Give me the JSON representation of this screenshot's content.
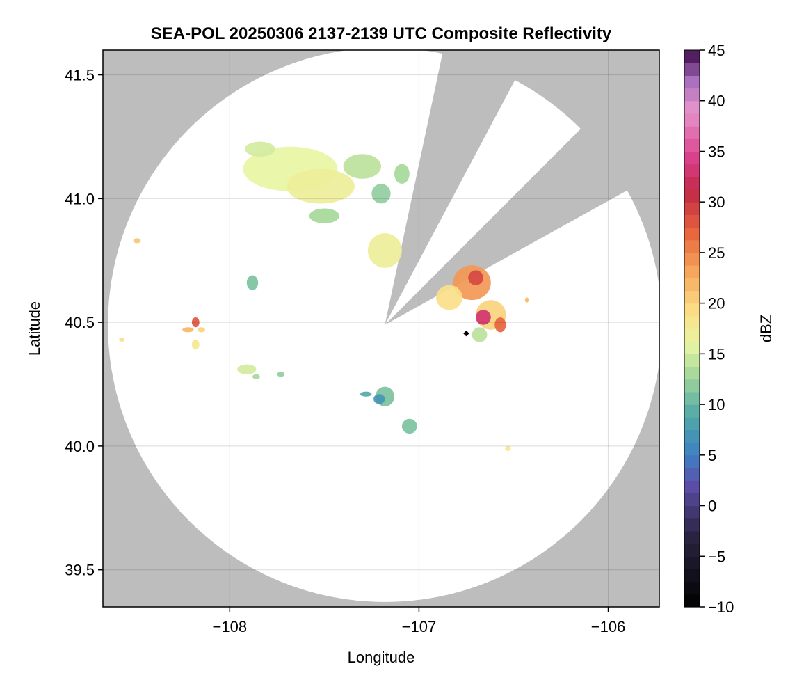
{
  "chart_data": {
    "type": "heatmap",
    "title": "SEA-POL 20250306 2137-2139 UTC Composite Reflectivity",
    "xlabel": "Longitude",
    "ylabel": "Latitude",
    "xlim": [
      -108.67,
      -105.73
    ],
    "ylim": [
      39.35,
      41.6
    ],
    "xticks": [
      -108,
      -107,
      -106
    ],
    "xtick_labels": [
      "−108",
      "−107",
      "−106"
    ],
    "yticks": [
      39.5,
      40.0,
      40.5,
      41.0,
      41.5
    ],
    "ytick_labels": [
      "39.5",
      "40.0",
      "40.5",
      "41.0",
      "41.5"
    ],
    "grid": true,
    "background_color": "#bdbdbd",
    "radar": {
      "center_lon": -107.18,
      "center_lat": 40.49,
      "range_lat_deg": 1.12,
      "blocked_sectors_deg_from_north": [
        [
          12,
          28
        ],
        [
          45,
          61
        ]
      ]
    },
    "radar_marker": {
      "lon": -106.75,
      "lat": 40.455
    },
    "colorbar": {
      "label": "dBZ",
      "min": -10,
      "max": 45,
      "step": 1.25,
      "ticks": [
        45,
        40,
        35,
        30,
        25,
        20,
        15,
        10,
        5,
        0,
        -5,
        -10
      ],
      "tick_labels": [
        "45",
        "40",
        "35",
        "30",
        "25",
        "20",
        "15",
        "10",
        "5",
        "0",
        "−5",
        "−10"
      ],
      "colormap": "Spectral_r",
      "stops": [
        {
          "v": -10,
          "c": "#000000"
        },
        {
          "v": -3,
          "c": "#2a2440"
        },
        {
          "v": 2,
          "c": "#5c4ea8"
        },
        {
          "v": 5,
          "c": "#3e7fc4"
        },
        {
          "v": 9,
          "c": "#52aaa6"
        },
        {
          "v": 13,
          "c": "#a6d99b"
        },
        {
          "v": 16,
          "c": "#e8f5a2"
        },
        {
          "v": 19,
          "c": "#fbe089"
        },
        {
          "v": 23,
          "c": "#f6a95c"
        },
        {
          "v": 27,
          "c": "#e8653e"
        },
        {
          "v": 31,
          "c": "#c22a46"
        },
        {
          "v": 34,
          "c": "#d83b85"
        },
        {
          "v": 39,
          "c": "#e895cc"
        },
        {
          "v": 42,
          "c": "#a86fbd"
        },
        {
          "v": 45,
          "c": "#3e0a4a"
        }
      ]
    },
    "echoes": [
      {
        "lon": -107.68,
        "lat": 41.12,
        "rlon": 0.25,
        "rlat": 0.09,
        "dbz": 16
      },
      {
        "lon": -107.52,
        "lat": 41.05,
        "rlon": 0.18,
        "rlat": 0.07,
        "dbz": 17
      },
      {
        "lon": -107.84,
        "lat": 41.2,
        "rlon": 0.08,
        "rlat": 0.03,
        "dbz": 15
      },
      {
        "lon": -107.3,
        "lat": 41.13,
        "rlon": 0.1,
        "rlat": 0.05,
        "dbz": 14
      },
      {
        "lon": -107.5,
        "lat": 40.93,
        "rlon": 0.08,
        "rlat": 0.03,
        "dbz": 13
      },
      {
        "lon": -107.2,
        "lat": 41.02,
        "rlon": 0.05,
        "rlat": 0.04,
        "dbz": 12
      },
      {
        "lon": -107.09,
        "lat": 41.1,
        "rlon": 0.04,
        "rlat": 0.04,
        "dbz": 13
      },
      {
        "lon": -107.18,
        "lat": 40.79,
        "rlon": 0.09,
        "rlat": 0.07,
        "dbz": 17
      },
      {
        "lon": -106.72,
        "lat": 40.66,
        "rlon": 0.1,
        "rlat": 0.07,
        "dbz": 24
      },
      {
        "lon": -106.84,
        "lat": 40.6,
        "rlon": 0.07,
        "rlat": 0.05,
        "dbz": 19
      },
      {
        "lon": -106.62,
        "lat": 40.53,
        "rlon": 0.08,
        "rlat": 0.06,
        "dbz": 20
      },
      {
        "lon": -106.66,
        "lat": 40.52,
        "rlon": 0.04,
        "rlat": 0.03,
        "dbz": 33
      },
      {
        "lon": -106.57,
        "lat": 40.49,
        "rlon": 0.03,
        "rlat": 0.03,
        "dbz": 27
      },
      {
        "lon": -106.7,
        "lat": 40.68,
        "rlon": 0.04,
        "rlat": 0.03,
        "dbz": 29
      },
      {
        "lon": -106.68,
        "lat": 40.45,
        "rlon": 0.04,
        "rlat": 0.03,
        "dbz": 14
      },
      {
        "lon": -106.43,
        "lat": 40.59,
        "rlon": 0.01,
        "rlat": 0.01,
        "dbz": 22
      },
      {
        "lon": -108.49,
        "lat": 40.83,
        "rlon": 0.02,
        "rlat": 0.01,
        "dbz": 21
      },
      {
        "lon": -107.88,
        "lat": 40.66,
        "rlon": 0.03,
        "rlat": 0.03,
        "dbz": 11
      },
      {
        "lon": -108.18,
        "lat": 40.5,
        "rlon": 0.02,
        "rlat": 0.02,
        "dbz": 28
      },
      {
        "lon": -108.22,
        "lat": 40.47,
        "rlon": 0.03,
        "rlat": 0.01,
        "dbz": 22
      },
      {
        "lon": -108.15,
        "lat": 40.47,
        "rlon": 0.02,
        "rlat": 0.01,
        "dbz": 20
      },
      {
        "lon": -108.18,
        "lat": 40.41,
        "rlon": 0.02,
        "rlat": 0.02,
        "dbz": 18
      },
      {
        "lon": -108.57,
        "lat": 40.43,
        "rlon": 0.015,
        "rlat": 0.008,
        "dbz": 19
      },
      {
        "lon": -107.91,
        "lat": 40.31,
        "rlon": 0.05,
        "rlat": 0.02,
        "dbz": 15
      },
      {
        "lon": -107.86,
        "lat": 40.28,
        "rlon": 0.02,
        "rlat": 0.01,
        "dbz": 13
      },
      {
        "lon": -107.73,
        "lat": 40.29,
        "rlon": 0.02,
        "rlat": 0.01,
        "dbz": 12
      },
      {
        "lon": -107.18,
        "lat": 40.2,
        "rlon": 0.05,
        "rlat": 0.04,
        "dbz": 11
      },
      {
        "lon": -107.21,
        "lat": 40.19,
        "rlon": 0.03,
        "rlat": 0.02,
        "dbz": 7
      },
      {
        "lon": -107.28,
        "lat": 40.21,
        "rlon": 0.03,
        "rlat": 0.01,
        "dbz": 9
      },
      {
        "lon": -107.05,
        "lat": 40.08,
        "rlon": 0.04,
        "rlat": 0.03,
        "dbz": 11
      },
      {
        "lon": -106.53,
        "lat": 39.99,
        "rlon": 0.015,
        "rlat": 0.01,
        "dbz": 18
      }
    ]
  }
}
